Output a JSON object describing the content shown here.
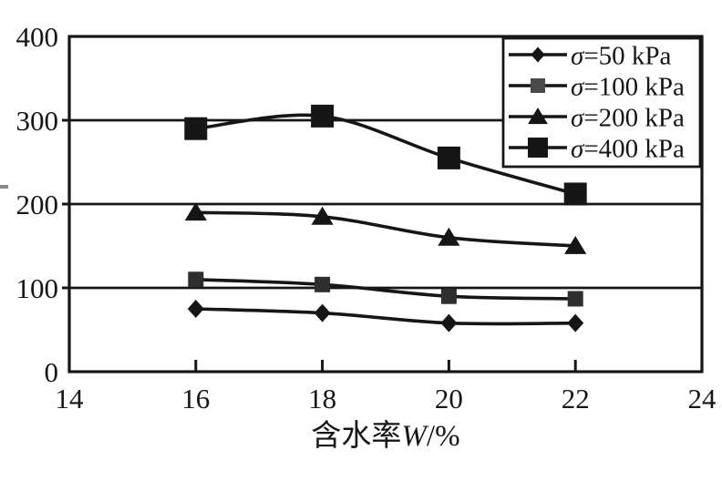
{
  "figure": {
    "background": "#ffffff",
    "ink": "#161616",
    "plot_fill": "#ffffff"
  },
  "chart_data": {
    "type": "line",
    "title": "",
    "xlabel": "含水率W/%",
    "xlabel_prefix": "含水率",
    "xlabel_var": "W",
    "xlabel_suffix": "/%",
    "ylabel": "",
    "xlim": [
      14,
      24
    ],
    "ylim": [
      0,
      400
    ],
    "x_ticks": [
      14,
      16,
      18,
      20,
      22,
      24
    ],
    "y_ticks": [
      0,
      100,
      200,
      300,
      400
    ],
    "grid": "horizontal-gridlines",
    "line_style": "smoothed",
    "legend_position": "top-right-inside",
    "x": [
      16,
      18,
      20,
      22
    ],
    "series": [
      {
        "name": "σ=50 kPa",
        "sigma": "σ",
        "label_rest": "=50 kPa",
        "marker": "diamond",
        "color": "#161616",
        "marker_color": "#161616",
        "values": [
          75,
          70,
          58,
          58
        ]
      },
      {
        "name": "σ=100 kPa",
        "sigma": "σ",
        "label_rest": "=100 kPa",
        "marker": "square-small",
        "color": "#161616",
        "marker_color": "#2e2e2e",
        "values": [
          110,
          104,
          90,
          87
        ]
      },
      {
        "name": "σ=200 kPa",
        "sigma": "σ",
        "label_rest": "=200 kPa",
        "marker": "triangle",
        "color": "#161616",
        "marker_color": "#161616",
        "values": [
          190,
          185,
          160,
          150
        ]
      },
      {
        "name": "σ=400 kPa",
        "sigma": "σ",
        "label_rest": "=400 kPa",
        "marker": "square-large",
        "color": "#161616",
        "marker_color": "#161616",
        "values": [
          290,
          305,
          255,
          212
        ]
      }
    ]
  }
}
